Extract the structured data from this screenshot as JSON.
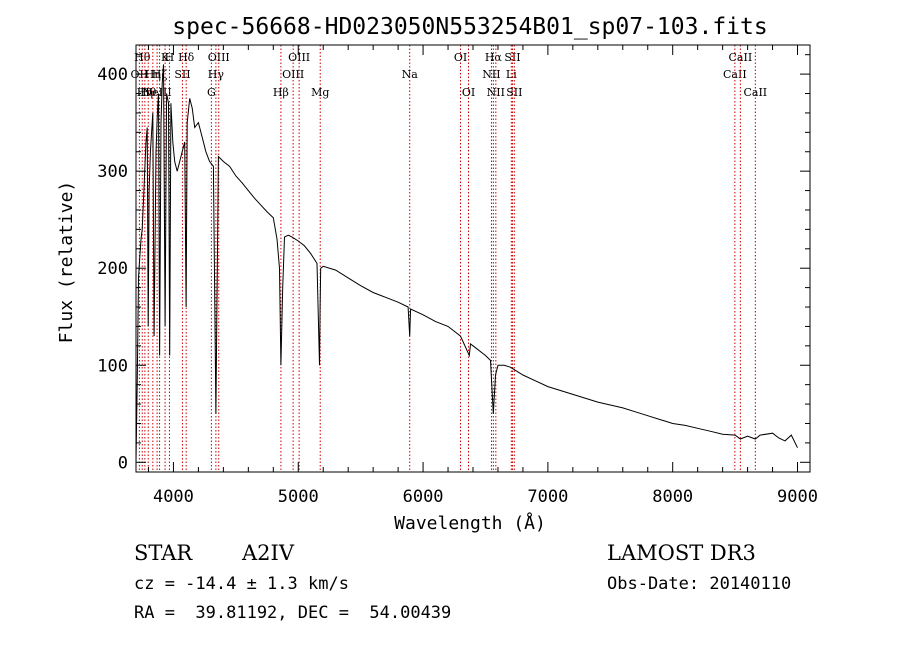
{
  "chart_data": {
    "type": "line",
    "title": "spec-56668-HD023050N553254B01_sp07-103.fits",
    "xlabel": "Wavelength (Å)",
    "ylabel": "Flux (relative)",
    "xlim": [
      3700,
      9100
    ],
    "ylim": [
      -10,
      430
    ],
    "x_ticks": [
      4000,
      5000,
      6000,
      7000,
      8000,
      9000
    ],
    "y_ticks": [
      0,
      100,
      200,
      300,
      400
    ],
    "line_color": "#000000",
    "marker_color": "#cc0000",
    "series": [
      {
        "name": "flux",
        "x": [
          3700,
          3710,
          3720,
          3730,
          3740,
          3750,
          3760,
          3770,
          3780,
          3790,
          3798,
          3805,
          3815,
          3825,
          3835,
          3845,
          3860,
          3870,
          3880,
          3889,
          3900,
          3910,
          3920,
          3933,
          3945,
          3960,
          3970,
          3980,
          3995,
          4010,
          4030,
          4050,
          4070,
          4090,
          4101,
          4110,
          4130,
          4150,
          4170,
          4200,
          4230,
          4260,
          4290,
          4320,
          4340,
          4360,
          4400,
          4450,
          4500,
          4550,
          4600,
          4650,
          4700,
          4750,
          4800,
          4830,
          4850,
          4861,
          4875,
          4890,
          4920,
          4950,
          5000,
          5050,
          5100,
          5150,
          5170,
          5175,
          5180,
          5200,
          5300,
          5400,
          5500,
          5600,
          5700,
          5800,
          5880,
          5893,
          5900,
          6000,
          6100,
          6200,
          6300,
          6370,
          6380,
          6400,
          6500,
          6540,
          6563,
          6580,
          6600,
          6650,
          6700,
          6800,
          6900,
          7000,
          7200,
          7400,
          7600,
          7700,
          7800,
          7900,
          7950,
          8000,
          8100,
          8200,
          8300,
          8400,
          8500,
          8542,
          8600,
          8662,
          8700,
          8800,
          8850,
          8900,
          8950,
          9000
        ],
        "values": [
          0,
          80,
          190,
          210,
          230,
          240,
          270,
          300,
          330,
          345,
          140,
          280,
          320,
          340,
          360,
          130,
          320,
          355,
          380,
          110,
          350,
          390,
          410,
          140,
          380,
          370,
          110,
          370,
          330,
          310,
          300,
          310,
          320,
          330,
          160,
          350,
          375,
          365,
          345,
          350,
          335,
          320,
          310,
          305,
          50,
          315,
          310,
          305,
          295,
          288,
          280,
          272,
          265,
          258,
          252,
          230,
          200,
          100,
          180,
          232,
          234,
          232,
          228,
          223,
          215,
          205,
          100,
          160,
          200,
          202,
          198,
          190,
          182,
          175,
          170,
          165,
          160,
          130,
          158,
          152,
          145,
          140,
          130,
          110,
          122,
          120,
          110,
          105,
          50,
          90,
          100,
          100,
          98,
          90,
          84,
          78,
          70,
          62,
          56,
          52,
          48,
          44,
          42,
          40,
          38,
          35,
          32,
          29,
          28,
          24,
          27,
          24,
          28,
          30,
          25,
          22,
          28,
          15
        ]
      }
    ],
    "line_markers": [
      {
        "x": 3727,
        "label": "OII",
        "row": 1
      },
      {
        "x": 3750,
        "label": "Hθ",
        "row": 0
      },
      {
        "x": 3771,
        "label": "Hη",
        "row": 2
      },
      {
        "x": 3798,
        "label": "Hθ",
        "row": 2
      },
      {
        "x": 3835,
        "label": "Hη",
        "row": 1
      },
      {
        "x": 3869,
        "label": "NeIII",
        "row": 2
      },
      {
        "x": 3889,
        "label": "Hζ",
        "row": 1
      },
      {
        "x": 3933,
        "label": "K",
        "row": 0
      },
      {
        "x": 3968,
        "label": "H",
        "row": 0
      },
      {
        "x": 4072,
        "label": "SII",
        "row": 1
      },
      {
        "x": 4102,
        "label": "Hδ",
        "row": 0
      },
      {
        "x": 4304,
        "label": "G",
        "row": 2
      },
      {
        "x": 4340,
        "label": "Hγ",
        "row": 1
      },
      {
        "x": 4363,
        "label": "OIII",
        "row": 0
      },
      {
        "x": 4861,
        "label": "Hβ",
        "row": 2
      },
      {
        "x": 4959,
        "label": "OIII",
        "row": 1
      },
      {
        "x": 5007,
        "label": "OIII",
        "row": 0
      },
      {
        "x": 5176,
        "label": "Mg",
        "row": 2
      },
      {
        "x": 5893,
        "label": "Na",
        "row": 1
      },
      {
        "x": 6300,
        "label": "OI",
        "row": 0
      },
      {
        "x": 6364,
        "label": "OI",
        "row": 2
      },
      {
        "x": 6548,
        "label": "NII",
        "row": 1
      },
      {
        "x": 6563,
        "label": "Hα",
        "row": 0
      },
      {
        "x": 6583,
        "label": "NII",
        "row": 2
      },
      {
        "x": 6707,
        "label": "Li",
        "row": 1
      },
      {
        "x": 6716,
        "label": "SII",
        "row": 0
      },
      {
        "x": 6731,
        "label": "SII",
        "row": 2
      },
      {
        "x": 8498,
        "label": "CaII",
        "row": 1
      },
      {
        "x": 8542,
        "label": "CaII",
        "row": 0
      },
      {
        "x": 8662,
        "label": "CaII",
        "row": 2
      }
    ]
  },
  "footer": {
    "object_type": "STAR",
    "subclass": "A2IV",
    "survey": "LAMOST DR3",
    "redshift": "cz = -14.4 ± 1.3 km/s",
    "obs_date": "Obs-Date: 20140110",
    "coords": "RA =  39.81192, DEC =  54.00439"
  }
}
